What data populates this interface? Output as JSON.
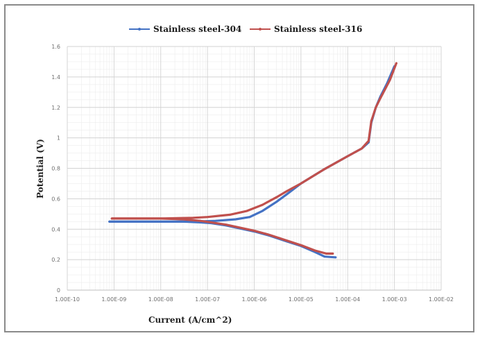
{
  "chart_data": {
    "type": "line",
    "xlabel": "Current (A/cm^2)",
    "ylabel": "Potential (V)",
    "x_scale": "log",
    "xlim": [
      1e-10,
      0.01
    ],
    "ylim": [
      0,
      1.6
    ],
    "x_tick_labels": [
      "1.00E-10",
      "1.00E-09",
      "1.00E-08",
      "1.00E-07",
      "1.00E-06",
      "1.00E-05",
      "1.00E-04",
      "1.00E-03",
      "1.00E-02"
    ],
    "y_tick_labels": [
      "0",
      "0.2",
      "0.4",
      "0.6",
      "0.8",
      "1",
      "1.2",
      "1.4",
      "1.6"
    ],
    "y_ticks": [
      0,
      0.2,
      0.4,
      0.6,
      0.8,
      1,
      1.2,
      1.4,
      1.6
    ],
    "grid": true,
    "legend_position": "top",
    "series": [
      {
        "name": "Stainless steel-304",
        "color": "#4472c4",
        "cathodic": [
          [
            5.5e-05,
            0.215
          ],
          [
            3.2e-05,
            0.22
          ],
          [
            2e-05,
            0.25
          ],
          [
            1e-05,
            0.29
          ],
          [
            5e-06,
            0.32
          ],
          [
            2e-06,
            0.36
          ],
          [
            1e-06,
            0.385
          ],
          [
            5e-07,
            0.405
          ],
          [
            2.5e-07,
            0.425
          ],
          [
            1.2e-07,
            0.44
          ],
          [
            7e-08,
            0.445
          ],
          [
            3e-08,
            0.45
          ],
          [
            1e-08,
            0.45
          ],
          [
            1e-09,
            0.45
          ],
          [
            8e-10,
            0.45
          ]
        ],
        "anodic": [
          [
            8e-10,
            0.45
          ],
          [
            1e-09,
            0.45
          ],
          [
            1e-08,
            0.45
          ],
          [
            5e-08,
            0.45
          ],
          [
            1.5e-07,
            0.455
          ],
          [
            4e-07,
            0.465
          ],
          [
            8e-07,
            0.48
          ],
          [
            1.5e-06,
            0.52
          ],
          [
            3e-06,
            0.58
          ],
          [
            5e-06,
            0.63
          ],
          [
            1e-05,
            0.7
          ],
          [
            3e-05,
            0.79
          ],
          [
            0.0001,
            0.88
          ],
          [
            0.0002,
            0.93
          ],
          [
            0.00028,
            0.97
          ],
          [
            0.00032,
            1.1
          ],
          [
            0.0004,
            1.2
          ],
          [
            0.0005,
            1.27
          ],
          [
            0.0007,
            1.36
          ],
          [
            0.001,
            1.47
          ]
        ]
      },
      {
        "name": "Stainless steel-316",
        "color": "#c0504d",
        "cathodic": [
          [
            4.8e-05,
            0.24
          ],
          [
            3.5e-05,
            0.24
          ],
          [
            2e-05,
            0.26
          ],
          [
            1e-05,
            0.295
          ],
          [
            5e-06,
            0.325
          ],
          [
            2e-06,
            0.365
          ],
          [
            1e-06,
            0.39
          ],
          [
            5e-07,
            0.41
          ],
          [
            2.5e-07,
            0.43
          ],
          [
            1.2e-07,
            0.445
          ],
          [
            7e-08,
            0.455
          ],
          [
            3e-08,
            0.465
          ],
          [
            1e-08,
            0.47
          ],
          [
            1e-09,
            0.47
          ],
          [
            9e-10,
            0.47
          ]
        ],
        "anodic": [
          [
            9e-10,
            0.47
          ],
          [
            1e-09,
            0.47
          ],
          [
            1e-08,
            0.47
          ],
          [
            5e-08,
            0.475
          ],
          [
            1e-07,
            0.48
          ],
          [
            3e-07,
            0.495
          ],
          [
            7e-07,
            0.52
          ],
          [
            1.5e-06,
            0.56
          ],
          [
            3e-06,
            0.61
          ],
          [
            5e-06,
            0.65
          ],
          [
            1e-05,
            0.7
          ],
          [
            3e-05,
            0.79
          ],
          [
            0.0001,
            0.88
          ],
          [
            0.0002,
            0.93
          ],
          [
            0.00028,
            0.98
          ],
          [
            0.00032,
            1.11
          ],
          [
            0.0004,
            1.2
          ],
          [
            0.0005,
            1.26
          ],
          [
            0.0008,
            1.38
          ],
          [
            0.0011,
            1.49
          ]
        ]
      }
    ]
  }
}
